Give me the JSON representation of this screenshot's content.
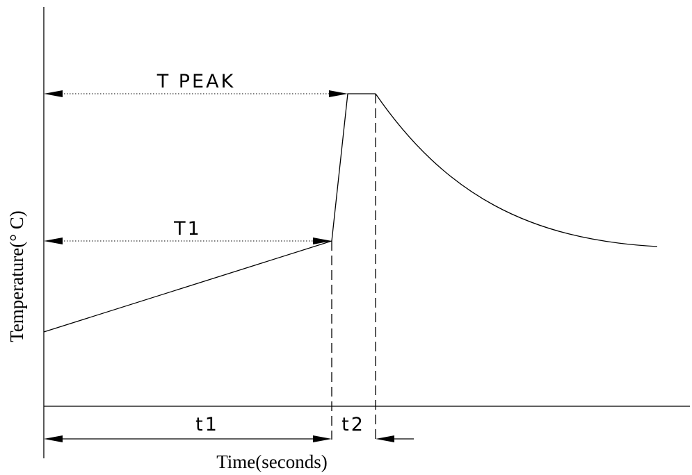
{
  "diagram": {
    "y_axis_label": "Temperature(° C)",
    "x_axis_label": "Time(seconds)",
    "peak_label": "T PEAK",
    "t1_temp_label": "T1",
    "t1_time_label": "t1",
    "t2_time_label": "t2"
  }
}
